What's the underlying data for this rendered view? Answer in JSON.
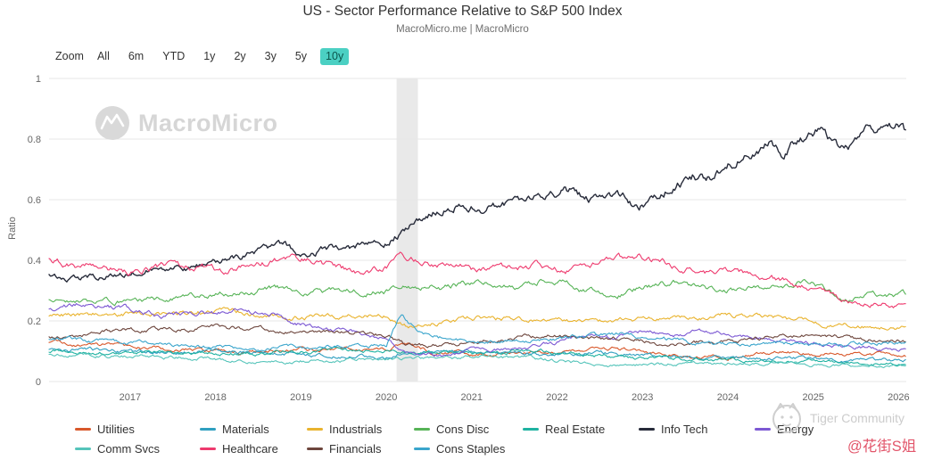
{
  "header": {
    "title": "US - Sector Performance Relative to S&P 500 Index",
    "subtitle": "MacroMicro.me | MacroMicro"
  },
  "toolbar": {
    "zoom_label": "Zoom",
    "buttons": [
      "All",
      "6m",
      "YTD",
      "1y",
      "2y",
      "3y",
      "5y",
      "10y"
    ],
    "selected": "10y",
    "selected_bg": "#4bd0c3"
  },
  "watermark": {
    "brand": "MacroMicro",
    "logo_icon": "macromicro-wave-logo"
  },
  "credits": {
    "tiger": "Tiger Community",
    "tiger_logo_icon": "tiger-face-logo",
    "handle": "@花街S姐",
    "handle_color": "#e2566b"
  },
  "chart_data": {
    "type": "line",
    "title": "US - Sector Performance Relative to S&P 500 Index",
    "subtitle": "MacroMicro.me | MacroMicro",
    "xlabel": "",
    "ylabel": "Ratio",
    "ylim": [
      0,
      1
    ],
    "yticks": [
      0,
      0.2,
      0.4,
      0.6,
      0.8,
      1
    ],
    "x_range": [
      2016.05,
      2026.09
    ],
    "xticks": [
      2017,
      2018,
      2019,
      2020,
      2021,
      2022,
      2023,
      2024,
      2025,
      2026
    ],
    "recession_band": [
      2020.12,
      2020.37
    ],
    "grid": true,
    "legend_position": "bottom",
    "legend_rows": [
      7,
      4
    ],
    "series": [
      {
        "name": "Utilities",
        "color": "#d8582b",
        "points": [
          [
            2016.05,
            0.125
          ],
          [
            2016.5,
            0.12
          ],
          [
            2017,
            0.115
          ],
          [
            2017.5,
            0.105
          ],
          [
            2018,
            0.1
          ],
          [
            2018.5,
            0.095
          ],
          [
            2019,
            0.105
          ],
          [
            2019.5,
            0.11
          ],
          [
            2020,
            0.105
          ],
          [
            2020.2,
            0.125
          ],
          [
            2020.5,
            0.1
          ],
          [
            2021,
            0.09
          ],
          [
            2021.5,
            0.09
          ],
          [
            2022,
            0.1
          ],
          [
            2022.7,
            0.11
          ],
          [
            2023,
            0.1
          ],
          [
            2023.5,
            0.085
          ],
          [
            2024,
            0.08
          ],
          [
            2024.6,
            0.095
          ],
          [
            2025,
            0.09
          ],
          [
            2025.5,
            0.095
          ],
          [
            2026.09,
            0.085
          ]
        ]
      },
      {
        "name": "Materials",
        "color": "#2f9fc0",
        "points": [
          [
            2016.05,
            0.105
          ],
          [
            2017,
            0.1
          ],
          [
            2018,
            0.1
          ],
          [
            2018.8,
            0.09
          ],
          [
            2019.5,
            0.085
          ],
          [
            2020,
            0.08
          ],
          [
            2020.2,
            0.1
          ],
          [
            2021,
            0.095
          ],
          [
            2021.8,
            0.09
          ],
          [
            2022.5,
            0.095
          ],
          [
            2023,
            0.085
          ],
          [
            2024,
            0.08
          ],
          [
            2024.8,
            0.075
          ],
          [
            2025.5,
            0.07
          ],
          [
            2026.09,
            0.07
          ]
        ]
      },
      {
        "name": "Industrials",
        "color": "#e9b32e",
        "points": [
          [
            2016.05,
            0.215
          ],
          [
            2016.8,
            0.225
          ],
          [
            2017.5,
            0.22
          ],
          [
            2018,
            0.235
          ],
          [
            2018.6,
            0.22
          ],
          [
            2019,
            0.21
          ],
          [
            2019.6,
            0.22
          ],
          [
            2020,
            0.215
          ],
          [
            2020.25,
            0.18
          ],
          [
            2020.8,
            0.2
          ],
          [
            2021,
            0.21
          ],
          [
            2021.6,
            0.205
          ],
          [
            2022,
            0.2
          ],
          [
            2022.6,
            0.195
          ],
          [
            2023,
            0.205
          ],
          [
            2023.6,
            0.215
          ],
          [
            2024,
            0.22
          ],
          [
            2024.5,
            0.21
          ],
          [
            2025,
            0.195
          ],
          [
            2025.4,
            0.185
          ],
          [
            2026.09,
            0.18
          ]
        ]
      },
      {
        "name": "Cons Disc",
        "color": "#56b356",
        "points": [
          [
            2016.05,
            0.27
          ],
          [
            2016.6,
            0.265
          ],
          [
            2017,
            0.27
          ],
          [
            2017.6,
            0.28
          ],
          [
            2018,
            0.285
          ],
          [
            2018.6,
            0.31
          ],
          [
            2019,
            0.295
          ],
          [
            2019.6,
            0.3
          ],
          [
            2020,
            0.295
          ],
          [
            2020.25,
            0.32
          ],
          [
            2020.7,
            0.31
          ],
          [
            2021,
            0.325
          ],
          [
            2021.5,
            0.315
          ],
          [
            2021.9,
            0.34
          ],
          [
            2022.3,
            0.3
          ],
          [
            2022.7,
            0.28
          ],
          [
            2023,
            0.315
          ],
          [
            2023.4,
            0.33
          ],
          [
            2023.8,
            0.3
          ],
          [
            2024.2,
            0.305
          ],
          [
            2024.7,
            0.315
          ],
          [
            2025,
            0.33
          ],
          [
            2025.3,
            0.27
          ],
          [
            2025.7,
            0.285
          ],
          [
            2026.09,
            0.285
          ]
        ]
      },
      {
        "name": "Real Estate",
        "color": "#1fb2a1",
        "points": [
          [
            2016.05,
            0.1
          ],
          [
            2017,
            0.095
          ],
          [
            2018,
            0.09
          ],
          [
            2019,
            0.1
          ],
          [
            2019.5,
            0.105
          ],
          [
            2020,
            0.1
          ],
          [
            2020.3,
            0.095
          ],
          [
            2021,
            0.095
          ],
          [
            2021.8,
            0.1
          ],
          [
            2022.5,
            0.085
          ],
          [
            2023,
            0.075
          ],
          [
            2024,
            0.07
          ],
          [
            2025,
            0.065
          ],
          [
            2026.09,
            0.055
          ]
        ]
      },
      {
        "name": "Info Tech",
        "color": "#272b3a",
        "points": [
          [
            2016.05,
            0.35
          ],
          [
            2016.4,
            0.34
          ],
          [
            2016.8,
            0.35
          ],
          [
            2017,
            0.36
          ],
          [
            2017.4,
            0.375
          ],
          [
            2017.8,
            0.385
          ],
          [
            2018,
            0.39
          ],
          [
            2018.4,
            0.42
          ],
          [
            2018.8,
            0.445
          ],
          [
            2019,
            0.42
          ],
          [
            2019.3,
            0.44
          ],
          [
            2019.6,
            0.445
          ],
          [
            2020,
            0.46
          ],
          [
            2020.2,
            0.5
          ],
          [
            2020.35,
            0.53
          ],
          [
            2020.6,
            0.57
          ],
          [
            2020.9,
            0.585
          ],
          [
            2021.1,
            0.565
          ],
          [
            2021.4,
            0.58
          ],
          [
            2021.7,
            0.595
          ],
          [
            2021.95,
            0.625
          ],
          [
            2022.1,
            0.64
          ],
          [
            2022.4,
            0.6
          ],
          [
            2022.7,
            0.62
          ],
          [
            2022.95,
            0.57
          ],
          [
            2023.1,
            0.6
          ],
          [
            2023.4,
            0.66
          ],
          [
            2023.6,
            0.68
          ],
          [
            2023.8,
            0.67
          ],
          [
            2024,
            0.72
          ],
          [
            2024.2,
            0.75
          ],
          [
            2024.5,
            0.79
          ],
          [
            2024.65,
            0.75
          ],
          [
            2024.9,
            0.81
          ],
          [
            2025.1,
            0.83
          ],
          [
            2025.3,
            0.76
          ],
          [
            2025.5,
            0.8
          ],
          [
            2025.7,
            0.83
          ],
          [
            2025.85,
            0.87
          ],
          [
            2026,
            0.85
          ],
          [
            2026.09,
            0.82
          ]
        ]
      },
      {
        "name": "Energy",
        "color": "#7c58d3",
        "points": [
          [
            2016.05,
            0.245
          ],
          [
            2016.5,
            0.255
          ],
          [
            2017,
            0.24
          ],
          [
            2017.4,
            0.215
          ],
          [
            2017.9,
            0.225
          ],
          [
            2018.3,
            0.235
          ],
          [
            2018.7,
            0.22
          ],
          [
            2019,
            0.19
          ],
          [
            2019.5,
            0.17
          ],
          [
            2020,
            0.14
          ],
          [
            2020.25,
            0.095
          ],
          [
            2020.7,
            0.085
          ],
          [
            2021,
            0.105
          ],
          [
            2021.5,
            0.11
          ],
          [
            2022,
            0.13
          ],
          [
            2022.3,
            0.155
          ],
          [
            2022.6,
            0.145
          ],
          [
            2023,
            0.165
          ],
          [
            2023.4,
            0.155
          ],
          [
            2023.8,
            0.165
          ],
          [
            2024.2,
            0.15
          ],
          [
            2024.7,
            0.135
          ],
          [
            2025,
            0.125
          ],
          [
            2025.5,
            0.115
          ],
          [
            2026.09,
            0.105
          ]
        ]
      },
      {
        "name": "Comm Svcs",
        "color": "#55c4ba",
        "points": [
          [
            2016.05,
            0.09
          ],
          [
            2017,
            0.085
          ],
          [
            2018,
            0.075
          ],
          [
            2018.8,
            0.065
          ],
          [
            2019.3,
            0.07
          ],
          [
            2020,
            0.07
          ],
          [
            2020.3,
            0.075
          ],
          [
            2021,
            0.08
          ],
          [
            2021.8,
            0.075
          ],
          [
            2022.3,
            0.06
          ],
          [
            2022.8,
            0.05
          ],
          [
            2023.3,
            0.058
          ],
          [
            2024,
            0.06
          ],
          [
            2025,
            0.058
          ],
          [
            2026.09,
            0.052
          ]
        ]
      },
      {
        "name": "Healthcare",
        "color": "#ee3a6e",
        "points": [
          [
            2016.05,
            0.41
          ],
          [
            2016.3,
            0.385
          ],
          [
            2016.7,
            0.375
          ],
          [
            2017,
            0.36
          ],
          [
            2017.4,
            0.375
          ],
          [
            2017.8,
            0.38
          ],
          [
            2018.1,
            0.365
          ],
          [
            2018.5,
            0.39
          ],
          [
            2018.9,
            0.41
          ],
          [
            2019.1,
            0.4
          ],
          [
            2019.4,
            0.375
          ],
          [
            2019.7,
            0.36
          ],
          [
            2020,
            0.375
          ],
          [
            2020.2,
            0.415
          ],
          [
            2020.45,
            0.39
          ],
          [
            2020.8,
            0.385
          ],
          [
            2021,
            0.37
          ],
          [
            2021.4,
            0.375
          ],
          [
            2021.8,
            0.38
          ],
          [
            2022.1,
            0.36
          ],
          [
            2022.4,
            0.38
          ],
          [
            2022.75,
            0.4
          ],
          [
            2022.95,
            0.415
          ],
          [
            2023.15,
            0.4
          ],
          [
            2023.45,
            0.375
          ],
          [
            2023.75,
            0.355
          ],
          [
            2024.05,
            0.36
          ],
          [
            2024.4,
            0.345
          ],
          [
            2024.7,
            0.33
          ],
          [
            2025,
            0.3
          ],
          [
            2025.25,
            0.285
          ],
          [
            2025.5,
            0.25
          ],
          [
            2025.75,
            0.26
          ],
          [
            2026.09,
            0.25
          ]
        ]
      },
      {
        "name": "Financials",
        "color": "#6d463d",
        "points": [
          [
            2016.05,
            0.15
          ],
          [
            2016.5,
            0.155
          ],
          [
            2016.9,
            0.17
          ],
          [
            2017.3,
            0.17
          ],
          [
            2017.8,
            0.175
          ],
          [
            2018.1,
            0.18
          ],
          [
            2018.6,
            0.17
          ],
          [
            2019,
            0.16
          ],
          [
            2019.5,
            0.165
          ],
          [
            2020,
            0.155
          ],
          [
            2020.25,
            0.12
          ],
          [
            2020.7,
            0.12
          ],
          [
            2021,
            0.135
          ],
          [
            2021.5,
            0.145
          ],
          [
            2022,
            0.15
          ],
          [
            2022.5,
            0.14
          ],
          [
            2023,
            0.14
          ],
          [
            2023.2,
            0.12
          ],
          [
            2023.7,
            0.13
          ],
          [
            2024,
            0.135
          ],
          [
            2024.8,
            0.15
          ],
          [
            2025.2,
            0.15
          ],
          [
            2025.6,
            0.14
          ],
          [
            2026.09,
            0.135
          ]
        ]
      },
      {
        "name": "Cons Staples",
        "color": "#3aa5cc",
        "points": [
          [
            2016.05,
            0.14
          ],
          [
            2016.6,
            0.135
          ],
          [
            2017,
            0.13
          ],
          [
            2017.6,
            0.12
          ],
          [
            2018,
            0.115
          ],
          [
            2018.5,
            0.105
          ],
          [
            2019,
            0.115
          ],
          [
            2019.5,
            0.12
          ],
          [
            2020,
            0.12
          ],
          [
            2020.18,
            0.23
          ],
          [
            2020.4,
            0.16
          ],
          [
            2020.7,
            0.14
          ],
          [
            2021,
            0.13
          ],
          [
            2021.6,
            0.13
          ],
          [
            2022,
            0.145
          ],
          [
            2022.4,
            0.15
          ],
          [
            2022.8,
            0.16
          ],
          [
            2023.1,
            0.145
          ],
          [
            2023.6,
            0.13
          ],
          [
            2024,
            0.125
          ],
          [
            2024.6,
            0.13
          ],
          [
            2025,
            0.12
          ],
          [
            2025.5,
            0.125
          ],
          [
            2026.09,
            0.13
          ]
        ]
      }
    ]
  }
}
